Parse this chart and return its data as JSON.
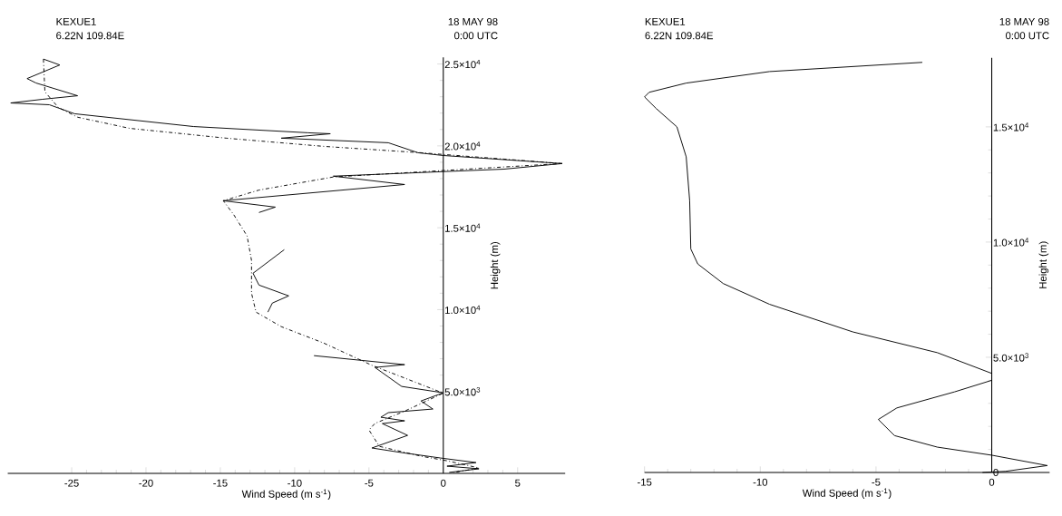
{
  "chart_data": [
    {
      "type": "line",
      "title": "KEXUE1",
      "subtitle": "6.22N 109.84E",
      "annotations": [
        "18 MAY 98",
        "0:00 UTC"
      ],
      "xlabel": "Wind Speed (m s$^{-1}$)",
      "ylabel": "Height (m)",
      "xlim": [
        -29.3,
        8.2
      ],
      "ylim": [
        0,
        25400
      ],
      "xticks": [
        -25,
        -20,
        -15,
        -10,
        -5,
        0,
        5
      ],
      "yticks": [
        {
          "value": 5000,
          "label": "5.0×10$^{3}$"
        },
        {
          "value": 10000,
          "label": "1.0×10$^{4}$"
        },
        {
          "value": 15000,
          "label": "1.5×10$^{4}$"
        },
        {
          "value": 20000,
          "label": "2.0×10$^{4}$"
        },
        {
          "value": 25000,
          "label": "2.5×10$^{4}$"
        }
      ],
      "series": [
        {
          "color": "#000000",
          "line_style": "solid",
          "x": [
            -26.9,
            -25.8,
            -28.0,
            -27.4,
            -24.6,
            -27.0,
            -29.1,
            -26.5,
            -24.8,
            -16.8,
            -9.1,
            -7.6,
            -10.9,
            -3.7,
            -1.7,
            0,
            8.0,
            4.1,
            -7.4,
            -2.6,
            -14.8,
            -11.3,
            -12.4,
            null,
            -10.7,
            -12.8,
            -12.4,
            -10.4,
            -11.5,
            -11.8,
            null,
            -8.7,
            -2.6,
            -4.6,
            -2.8,
            0,
            -1.5,
            -0.7,
            -3.7,
            -4.2,
            -2.6,
            -4.1,
            -2.4,
            -4.8,
            -2.8,
            -0.2,
            2.2,
            0.25,
            2.4,
            0.4
          ],
          "values": [
            25300,
            24940,
            24110,
            23840,
            23060,
            22840,
            22620,
            22510,
            21960,
            21180,
            20800,
            20740,
            20470,
            20190,
            19580,
            19410,
            18920,
            18580,
            18150,
            17640,
            16650,
            16260,
            15930,
            null,
            13660,
            12220,
            11500,
            10840,
            10400,
            9850,
            null,
            7190,
            6640,
            6470,
            5310,
            4920,
            4420,
            3930,
            3710,
            3430,
            3210,
            3040,
            2320,
            1550,
            1270,
            940,
            660,
            440,
            280,
            60
          ]
        },
        {
          "color": "#000000",
          "line_style": "dashdot",
          "x": [
            -26.9,
            -26.8,
            -25.9,
            -24.6,
            -21.1,
            -14.6,
            -8.05,
            -1.5,
            8.0,
            -7.4,
            -12.4,
            -14.8,
            -14.1,
            -13.2,
            -12.9,
            -12.9,
            -12.6,
            -10.9,
            -8.05,
            -4.8,
            0,
            -2.6,
            -4.6,
            -5.0,
            -4.3,
            -1.5,
            0.25,
            2.4,
            0.7
          ],
          "values": [
            25300,
            23300,
            22350,
            21750,
            21070,
            20470,
            19970,
            19580,
            18920,
            18100,
            17300,
            16650,
            15800,
            14500,
            13000,
            11000,
            9850,
            8960,
            7960,
            6600,
            4900,
            3800,
            3050,
            2650,
            1650,
            1050,
            770,
            330,
            50
          ]
        }
      ]
    },
    {
      "type": "line",
      "title": "KEXUE1",
      "subtitle": "6.22N 109.84E",
      "annotations": [
        "18 MAY 98",
        "0:00 UTC"
      ],
      "xlabel": "Wind Speed (m s$^{-1}$)",
      "ylabel": "Height (m)",
      "xlim": [
        -15,
        2.5
      ],
      "ylim": [
        0,
        18000
      ],
      "xticks": [
        -15,
        -10,
        -5,
        0
      ],
      "yticks": [
        0,
        {
          "value": 5000,
          "label": "5.0×10$^{3}$"
        },
        {
          "value": 10000,
          "label": "1.0×10$^{4}$"
        },
        {
          "value": 15000,
          "label": "1.5×10$^{4}$"
        }
      ],
      "series": [
        {
          "color": "#000000",
          "line_style": "solid",
          "x": [
            -3.0,
            -9.6,
            -13.2,
            -14.8,
            -15.0,
            -14.5,
            -13.6,
            -13.2,
            -13.05,
            -13.0,
            -12.7,
            -11.6,
            -9.6,
            -6.0,
            -2.35,
            0,
            0,
            -1.6,
            -4.1,
            -4.9,
            -4.2,
            -2.35,
            0,
            2.4,
            0.6,
            -0.4
          ],
          "values": [
            17800,
            17400,
            16900,
            16500,
            16300,
            15800,
            15000,
            13700,
            11800,
            9700,
            9050,
            8200,
            7300,
            6100,
            5200,
            4300,
            4000,
            3500,
            2800,
            2300,
            1600,
            1100,
            750,
            300,
            50,
            0
          ]
        }
      ]
    }
  ]
}
